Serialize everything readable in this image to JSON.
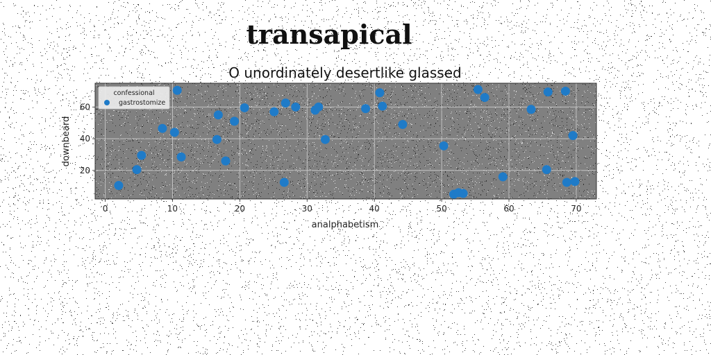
{
  "figure": {
    "suptitle": "transapical"
  },
  "colors": {
    "background": "#ffffff",
    "plot_background": "#808080",
    "grid": "#d0d0d0",
    "marker": "#1f7bc8"
  },
  "chart_data": {
    "type": "scatter",
    "title": "O unordinately desertlike glassed",
    "xlabel": "analphabetism",
    "ylabel": "downbeard",
    "xlim": [
      -1.5,
      73
    ],
    "ylim": [
      2,
      75
    ],
    "xticks": [
      0,
      10,
      20,
      30,
      40,
      50,
      60,
      70
    ],
    "yticks": [
      20,
      40,
      60
    ],
    "grid": true,
    "legend": {
      "title": "confessional",
      "placement": "upper-left",
      "entries": [
        "gastrostomize"
      ]
    },
    "series": [
      {
        "name": "gastrostomize",
        "marker": "circle",
        "x": [
          2,
          4.7,
          5.4,
          8.5,
          10.3,
          10.7,
          11.3,
          16.6,
          16.8,
          17.9,
          19.2,
          20.7,
          25.1,
          26.6,
          26.8,
          28.3,
          31.2,
          31.7,
          32.7,
          38.7,
          40.8,
          41.2,
          44.2,
          50.3,
          51.8,
          52.5,
          53.2,
          55.4,
          56.4,
          59.1,
          63.3,
          65.6,
          65.8,
          68.4,
          68.6,
          69.5,
          69.8
        ],
        "y": [
          10.5,
          20.5,
          29.5,
          46.5,
          44,
          70.5,
          28.5,
          39.5,
          55,
          26,
          51,
          59.5,
          57,
          12.5,
          62.5,
          60,
          58,
          60,
          39.5,
          59,
          69,
          60.5,
          49,
          35.5,
          5,
          6,
          5.5,
          71,
          66,
          16,
          58.5,
          20.5,
          69.5,
          70,
          12.5,
          42,
          13
        ]
      }
    ]
  }
}
